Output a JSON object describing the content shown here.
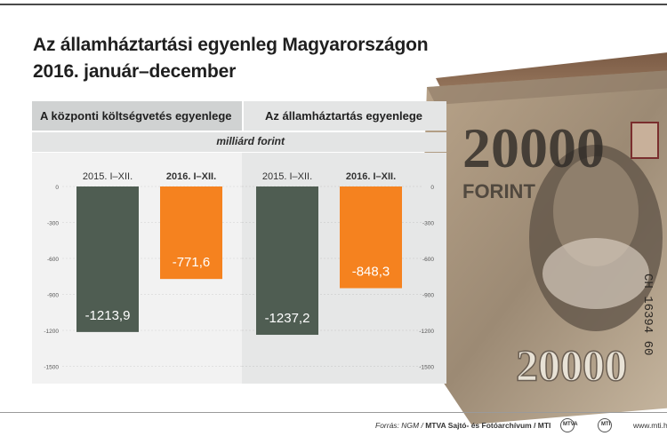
{
  "title": {
    "line1": "Az államháztartási egyenleg Magyarországon",
    "line2": "2016. január–december"
  },
  "panels": {
    "left_header": "A központi költségvetés egyenlege",
    "right_header": "Az államháztartás egyenlege",
    "unit": "milliárd forint"
  },
  "colors": {
    "bar_2015": "#4f5d52",
    "bar_2016": "#f5821f",
    "label_text": "#ffffff"
  },
  "chart_data": {
    "type": "bar",
    "groups": [
      "A központi költségvetés egyenlege",
      "Az államháztartás egyenlege"
    ],
    "categories": [
      "2015. I–XII.",
      "2016. I–XII."
    ],
    "series": [
      {
        "group": "A központi költségvetés egyenlege",
        "values": [
          -1213.9,
          -771.6
        ],
        "labels": [
          "-1213,9",
          "-771,6"
        ]
      },
      {
        "group": "Az államháztartás egyenlege",
        "values": [
          -1237.2,
          -848.3
        ],
        "labels": [
          "-1237,2",
          "-848,3"
        ]
      }
    ],
    "yticks": [
      "0",
      "-300",
      "-600",
      "-900",
      "-1200",
      "-1500"
    ],
    "ytick_values": [
      0,
      -300,
      -600,
      -900,
      -1200,
      -1500
    ],
    "ylim": [
      -1500,
      0
    ],
    "ylabel": "milliárd forint",
    "grid": true
  },
  "banknote": {
    "denomination": "20000",
    "text": "FORINT",
    "serial": "CH 16394 60"
  },
  "footer": {
    "source_label": "Forrás: NGM /",
    "source_org": "MTVA Sajtó- és Fotóarchívum / MTI",
    "logo_mtva": "MTVA",
    "logo_mti": "MTI",
    "url": "www.mti.hu"
  }
}
